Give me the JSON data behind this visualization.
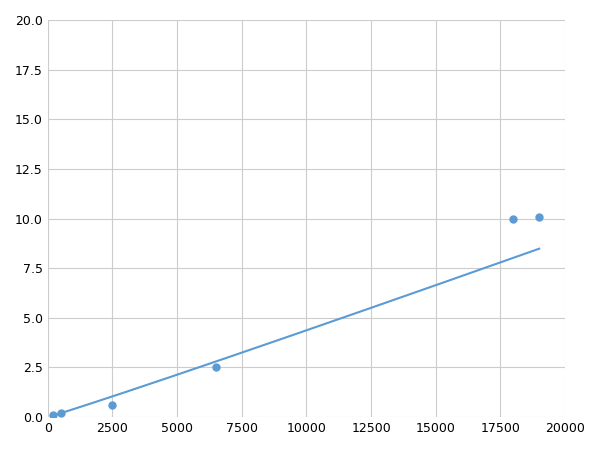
{
  "x": [
    200,
    500,
    2500,
    6500,
    18000,
    19000
  ],
  "y": [
    0.1,
    0.2,
    0.6,
    2.5,
    10.0,
    10.1
  ],
  "line_color": "#5b9bd5",
  "marker_color": "#5b9bd5",
  "marker_size": 5,
  "xlim": [
    0,
    20000
  ],
  "ylim": [
    0,
    20.0
  ],
  "xticks": [
    0,
    2500,
    5000,
    7500,
    10000,
    12500,
    15000,
    17500,
    20000
  ],
  "yticks": [
    0.0,
    2.5,
    5.0,
    7.5,
    10.0,
    12.5,
    15.0,
    17.5,
    20.0
  ],
  "grid_color": "#cccccc",
  "background_color": "#ffffff",
  "linewidth": 1.5
}
